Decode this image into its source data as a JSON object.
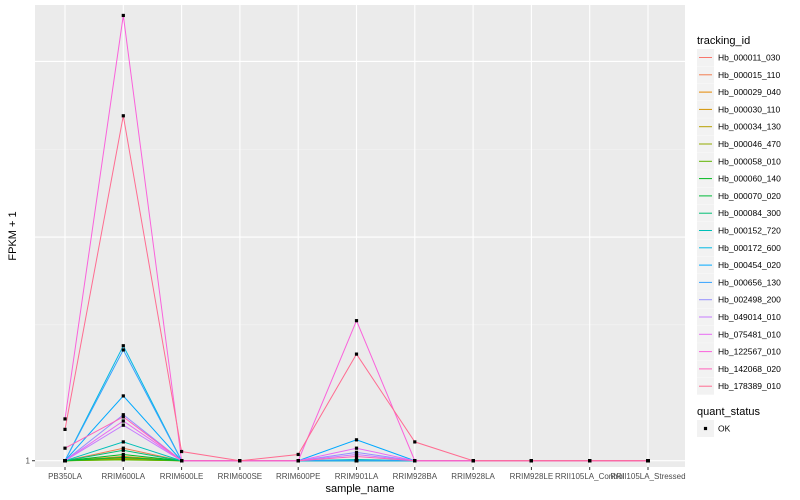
{
  "chart_data": {
    "type": "line",
    "xlabel": "sample_name",
    "ylabel": "FPKM + 1",
    "y_ticks": [
      "1"
    ],
    "ylim": [
      0.85,
      11.9
    ],
    "grid": true,
    "legend_position": "right",
    "categories": [
      "PB350LA",
      "RRIM600LA",
      "RRIM600LE",
      "RRIM600SE",
      "RRIM600PE",
      "RRIM901LA",
      "RRIM928BA",
      "RRIM928LA",
      "RRIM928LE",
      "RRII105LA_Control",
      "RRII105LA_Stressed"
    ],
    "series": [
      {
        "name": "Hb_000011_030",
        "color": "#F8766D",
        "values": [
          1.0,
          1.05,
          1.0,
          1.0,
          1.0,
          1.0,
          1.0,
          1.0,
          1.0,
          1.0,
          1.0
        ]
      },
      {
        "name": "Hb_000015_110",
        "color": "#F17D50",
        "values": [
          1.0,
          1.3,
          1.0,
          1.0,
          1.0,
          1.0,
          1.0,
          1.0,
          1.0,
          1.0,
          1.0
        ]
      },
      {
        "name": "Hb_000029_040",
        "color": "#E58700",
        "values": [
          1.0,
          1.1,
          1.0,
          1.0,
          1.0,
          1.0,
          1.0,
          1.0,
          1.0,
          1.0,
          1.0
        ]
      },
      {
        "name": "Hb_000030_110",
        "color": "#D39200",
        "values": [
          1.0,
          1.04,
          1.0,
          1.0,
          1.0,
          1.0,
          1.0,
          1.0,
          1.0,
          1.0,
          1.0
        ]
      },
      {
        "name": "Hb_000034_130",
        "color": "#B79F00",
        "values": [
          1.0,
          1.06,
          1.0,
          1.0,
          1.0,
          1.0,
          1.0,
          1.0,
          1.0,
          1.0,
          1.0
        ]
      },
      {
        "name": "Hb_000046_470",
        "color": "#93AA00",
        "values": [
          1.0,
          1.03,
          1.0,
          1.0,
          1.0,
          1.0,
          1.0,
          1.0,
          1.0,
          1.0,
          1.0
        ]
      },
      {
        "name": "Hb_000058_010",
        "color": "#5EB300",
        "values": [
          1.0,
          1.02,
          1.0,
          1.0,
          1.0,
          1.0,
          1.0,
          1.0,
          1.0,
          1.0,
          1.0
        ]
      },
      {
        "name": "Hb_000060_140",
        "color": "#00B81F",
        "values": [
          1.0,
          1.15,
          1.0,
          1.0,
          1.0,
          1.0,
          1.0,
          1.0,
          1.0,
          1.0,
          1.0
        ]
      },
      {
        "name": "Hb_000070_020",
        "color": "#00BA38",
        "values": [
          1.0,
          1.08,
          1.0,
          1.0,
          1.0,
          1.0,
          1.0,
          1.0,
          1.0,
          1.0,
          1.0
        ]
      },
      {
        "name": "Hb_000084_300",
        "color": "#00BF74",
        "values": [
          1.0,
          1.25,
          1.0,
          1.0,
          1.0,
          1.0,
          1.0,
          1.0,
          1.0,
          1.0,
          1.0
        ]
      },
      {
        "name": "Hb_000152_720",
        "color": "#00C0B8",
        "values": [
          1.0,
          1.45,
          1.0,
          1.0,
          1.0,
          1.03,
          1.0,
          1.0,
          1.0,
          1.0,
          1.0
        ]
      },
      {
        "name": "Hb_000172_600",
        "color": "#00B9E3",
        "values": [
          1.0,
          3.75,
          1.0,
          1.0,
          1.0,
          1.0,
          1.0,
          1.0,
          1.0,
          1.0,
          1.0
        ]
      },
      {
        "name": "Hb_000454_020",
        "color": "#00A9FF",
        "values": [
          1.0,
          2.55,
          1.0,
          1.0,
          1.0,
          1.5,
          1.0,
          1.0,
          1.0,
          1.0,
          1.0
        ]
      },
      {
        "name": "Hb_000656_130",
        "color": "#35A2FF",
        "values": [
          1.0,
          3.65,
          1.0,
          1.0,
          1.0,
          1.0,
          1.0,
          1.0,
          1.0,
          1.0,
          1.0
        ]
      },
      {
        "name": "Hb_002498_200",
        "color": "#9590FF",
        "values": [
          1.0,
          2.1,
          1.0,
          1.0,
          1.0,
          1.2,
          1.0,
          1.0,
          1.0,
          1.0,
          1.0
        ]
      },
      {
        "name": "Hb_049014_010",
        "color": "#C77CFF",
        "values": [
          1.0,
          1.85,
          1.0,
          1.0,
          1.0,
          1.15,
          1.0,
          1.0,
          1.0,
          1.0,
          1.0
        ]
      },
      {
        "name": "Hb_075481_010",
        "color": "#E76BF3",
        "values": [
          1.0,
          1.95,
          1.0,
          1.0,
          1.0,
          1.3,
          1.0,
          1.0,
          1.0,
          1.0,
          1.0
        ]
      },
      {
        "name": "Hb_122567_010",
        "color": "#FA62DB",
        "values": [
          2.0,
          11.65,
          1.0,
          1.0,
          1.0,
          4.35,
          1.0,
          1.0,
          1.0,
          1.0,
          1.0
        ]
      },
      {
        "name": "Hb_142068_020",
        "color": "#FF62BC",
        "values": [
          1.3,
          2.05,
          1.0,
          1.0,
          1.0,
          1.1,
          1.0,
          1.0,
          1.0,
          1.0,
          1.0
        ]
      },
      {
        "name": "Hb_178389_010",
        "color": "#FF6C91",
        "values": [
          1.75,
          9.25,
          1.22,
          1.0,
          1.15,
          3.55,
          1.45,
          1.0,
          1.0,
          1.0,
          1.0
        ]
      }
    ],
    "shape_legend": {
      "title": "quant_status",
      "entries": [
        "OK"
      ]
    },
    "legend_title": "tracking_id"
  }
}
